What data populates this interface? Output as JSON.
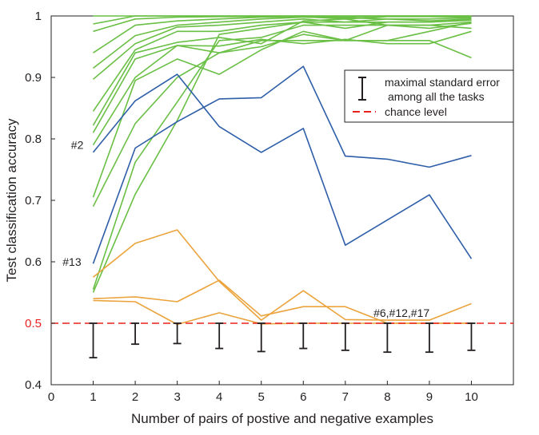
{
  "chart_data": {
    "type": "line",
    "xlabel": "Number of pairs of postive and negative examples",
    "ylabel": "Test classification accuracy",
    "xlim": [
      0,
      11
    ],
    "ylim": [
      0.4,
      1.0
    ],
    "xticks": [
      "0",
      "1",
      "2",
      "3",
      "4",
      "5",
      "6",
      "7",
      "8",
      "9",
      "10"
    ],
    "yticks": [
      "0.4",
      "0.5",
      "0.6",
      "0.7",
      "0.8",
      "0.9",
      "1"
    ],
    "grid": false,
    "x": [
      1,
      2,
      3,
      4,
      5,
      6,
      7,
      8,
      9,
      10
    ],
    "colors": {
      "green": "#6abf45",
      "blue": "#2e5ea8",
      "orange": "#eba33c",
      "chance": "#e8221f",
      "errorbar": "#231f20"
    },
    "series": [
      {
        "name": "green-1",
        "group": "green",
        "values": [
          1.0,
          1.0,
          1.0,
          1.0,
          1.0,
          1.0,
          1.0,
          1.0,
          1.0,
          1.0
        ]
      },
      {
        "name": "green-2",
        "group": "green",
        "values": [
          0.987,
          1.0,
          1.0,
          1.0,
          1.0,
          1.0,
          1.0,
          1.0,
          1.0,
          1.0
        ]
      },
      {
        "name": "green-3",
        "group": "green",
        "values": [
          0.975,
          0.995,
          0.998,
          0.999,
          0.999,
          1.0,
          0.998,
          1.0,
          1.0,
          1.0
        ]
      },
      {
        "name": "green-4",
        "group": "green",
        "values": [
          0.94,
          0.985,
          0.992,
          0.995,
          0.998,
          0.999,
          0.995,
          0.999,
          0.999,
          0.998
        ]
      },
      {
        "name": "green-5",
        "group": "green",
        "values": [
          0.915,
          0.968,
          0.985,
          0.99,
          0.995,
          0.998,
          0.997,
          0.995,
          0.995,
          0.997
        ]
      },
      {
        "name": "green-6",
        "group": "green",
        "values": [
          0.897,
          0.955,
          0.982,
          0.985,
          0.99,
          0.995,
          0.99,
          0.995,
          0.992,
          0.995
        ]
      },
      {
        "name": "green-7",
        "group": "green",
        "values": [
          0.845,
          0.945,
          0.975,
          0.975,
          0.985,
          0.99,
          0.98,
          0.99,
          0.99,
          0.993
        ]
      },
      {
        "name": "green-8",
        "group": "green",
        "values": [
          0.822,
          0.94,
          0.957,
          0.965,
          0.955,
          0.992,
          0.995,
          0.985,
          0.985,
          0.99
        ]
      },
      {
        "name": "green-9",
        "group": "green",
        "values": [
          0.81,
          0.93,
          0.952,
          0.951,
          0.962,
          0.955,
          0.962,
          0.955,
          0.955,
          0.975
        ]
      },
      {
        "name": "green-10",
        "group": "green",
        "values": [
          0.79,
          0.9,
          0.952,
          0.94,
          0.95,
          0.97,
          0.96,
          0.985,
          0.98,
          0.988
        ]
      },
      {
        "name": "green-11",
        "group": "green",
        "values": [
          0.705,
          0.895,
          0.93,
          0.905,
          0.945,
          0.975,
          0.96,
          0.96,
          0.975,
          0.99
        ]
      },
      {
        "name": "green-12",
        "group": "green",
        "values": [
          0.69,
          0.825,
          0.9,
          0.94,
          0.96,
          0.96,
          0.96,
          0.96,
          0.96,
          0.932
        ]
      },
      {
        "name": "green-13",
        "group": "green",
        "values": [
          0.555,
          0.762,
          0.86,
          0.96,
          0.965,
          0.985,
          0.985,
          0.985,
          0.985,
          0.98
        ]
      },
      {
        "name": "green-14",
        "group": "green",
        "values": [
          0.55,
          0.71,
          0.83,
          0.97,
          0.98,
          0.99,
          0.99,
          0.99,
          0.99,
          0.995
        ]
      },
      {
        "name": "blue-1",
        "group": "blue",
        "values": [
          0.778,
          0.862,
          0.905,
          0.82,
          0.778,
          0.817,
          0.627,
          0.668,
          0.709,
          0.605
        ]
      },
      {
        "name": "blue-2",
        "group": "blue",
        "values": [
          0.597,
          0.785,
          0.828,
          0.865,
          0.867,
          0.918,
          0.772,
          0.767,
          0.754,
          0.773
        ]
      },
      {
        "name": "orange-1",
        "group": "orange",
        "values": [
          0.575,
          0.63,
          0.652,
          0.568,
          0.505,
          0.553,
          0.506,
          0.505,
          0.505,
          0.532
        ]
      },
      {
        "name": "orange-2",
        "group": "orange",
        "values": [
          0.54,
          0.543,
          0.535,
          0.57,
          0.512,
          0.527,
          0.527,
          0.5,
          0.5,
          0.5
        ]
      },
      {
        "name": "orange-3",
        "group": "orange",
        "values": [
          0.537,
          0.535,
          0.498,
          0.517,
          0.499,
          0.5,
          0.5,
          0.5,
          0.5,
          0.5
        ]
      }
    ],
    "chance_level": 0.5,
    "error_bars": [
      {
        "x": 1,
        "low": 0.444,
        "high": 0.5
      },
      {
        "x": 2,
        "low": 0.466,
        "high": 0.5
      },
      {
        "x": 3,
        "low": 0.467,
        "high": 0.5
      },
      {
        "x": 4,
        "low": 0.459,
        "high": 0.5
      },
      {
        "x": 5,
        "low": 0.454,
        "high": 0.5
      },
      {
        "x": 6,
        "low": 0.459,
        "high": 0.5
      },
      {
        "x": 7,
        "low": 0.456,
        "high": 0.5
      },
      {
        "x": 8,
        "low": 0.453,
        "high": 0.5
      },
      {
        "x": 9,
        "low": 0.453,
        "high": 0.5
      },
      {
        "x": 10,
        "low": 0.456,
        "high": 0.5
      }
    ],
    "annotations": [
      {
        "text": "#2",
        "x": 0.7,
        "y": 0.79
      },
      {
        "text": "#13",
        "x": 0.5,
        "y": 0.6
      },
      {
        "text": "#6,#12,#17",
        "x": 7.9,
        "y": 0.517
      }
    ],
    "legend": {
      "position": "upper-right",
      "entries": [
        {
          "line1": "maximal standard error",
          "line2": "among all the tasks"
        },
        {
          "line1": "chance level"
        }
      ]
    }
  }
}
